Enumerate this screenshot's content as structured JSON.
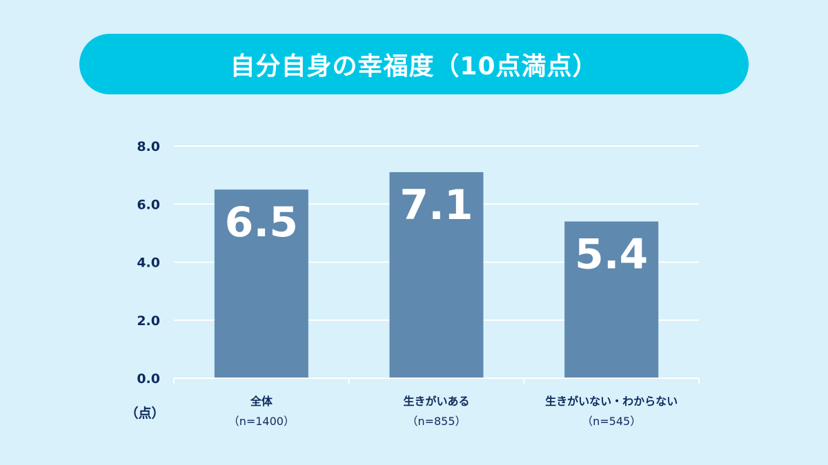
{
  "title": "自分自身の幸福度（10点満点）",
  "colors": {
    "background": "#d8f1fb",
    "banner": "#00c6e6",
    "bar": "#5f89ae",
    "grid": "#ffffff",
    "text": "#0e2a5c"
  },
  "chart_data": {
    "type": "bar",
    "title": "自分自身の幸福度（10点満点）",
    "ylabel": "（点）",
    "ylim": [
      0,
      8
    ],
    "yticks": [
      "0.0",
      "2.0",
      "4.0",
      "6.0",
      "8.0"
    ],
    "yticks_values": [
      0,
      2,
      4,
      6,
      8
    ],
    "categories": [
      "全体",
      "生きがいある",
      "生きがいない・わからない"
    ],
    "sample_sizes": [
      "（n=1400）",
      "（n=855）",
      "（n=545）"
    ],
    "values": [
      6.5,
      7.1,
      5.4
    ],
    "value_labels": [
      "6.5",
      "7.1",
      "5.4"
    ],
    "grid": true
  }
}
